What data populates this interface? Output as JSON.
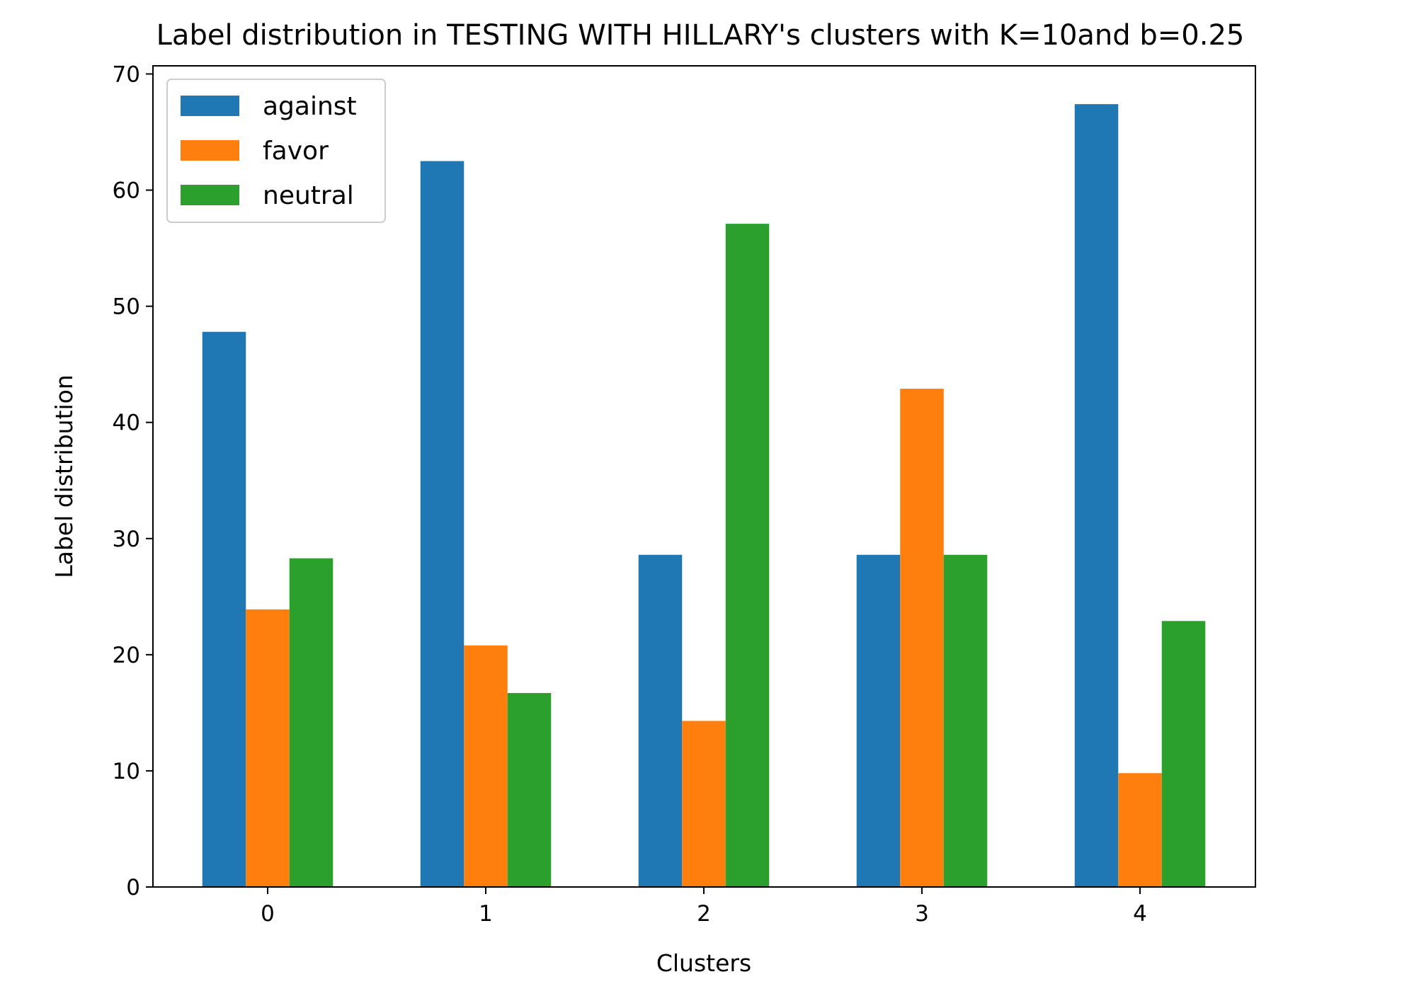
{
  "chart_data": {
    "type": "bar",
    "title": "Label distribution in TESTING WITH HILLARY's clusters with K=10and b=0.25",
    "xlabel": "Clusters",
    "ylabel": "Label distribution",
    "categories": [
      "0",
      "1",
      "2",
      "3",
      "4"
    ],
    "series": [
      {
        "name": "against",
        "color": "#1f77b4",
        "values": [
          47.8,
          62.5,
          28.6,
          28.6,
          67.4
        ]
      },
      {
        "name": "favor",
        "color": "#ff7f0e",
        "values": [
          23.9,
          20.8,
          14.3,
          42.9,
          9.8
        ]
      },
      {
        "name": "neutral",
        "color": "#2ca02c",
        "values": [
          28.3,
          16.7,
          57.1,
          28.6,
          22.9
        ]
      }
    ],
    "ylim": [
      0,
      70.7
    ],
    "yticks": [
      0,
      10,
      20,
      30,
      40,
      50,
      60,
      70
    ],
    "grid": false,
    "legend": "top-left"
  }
}
